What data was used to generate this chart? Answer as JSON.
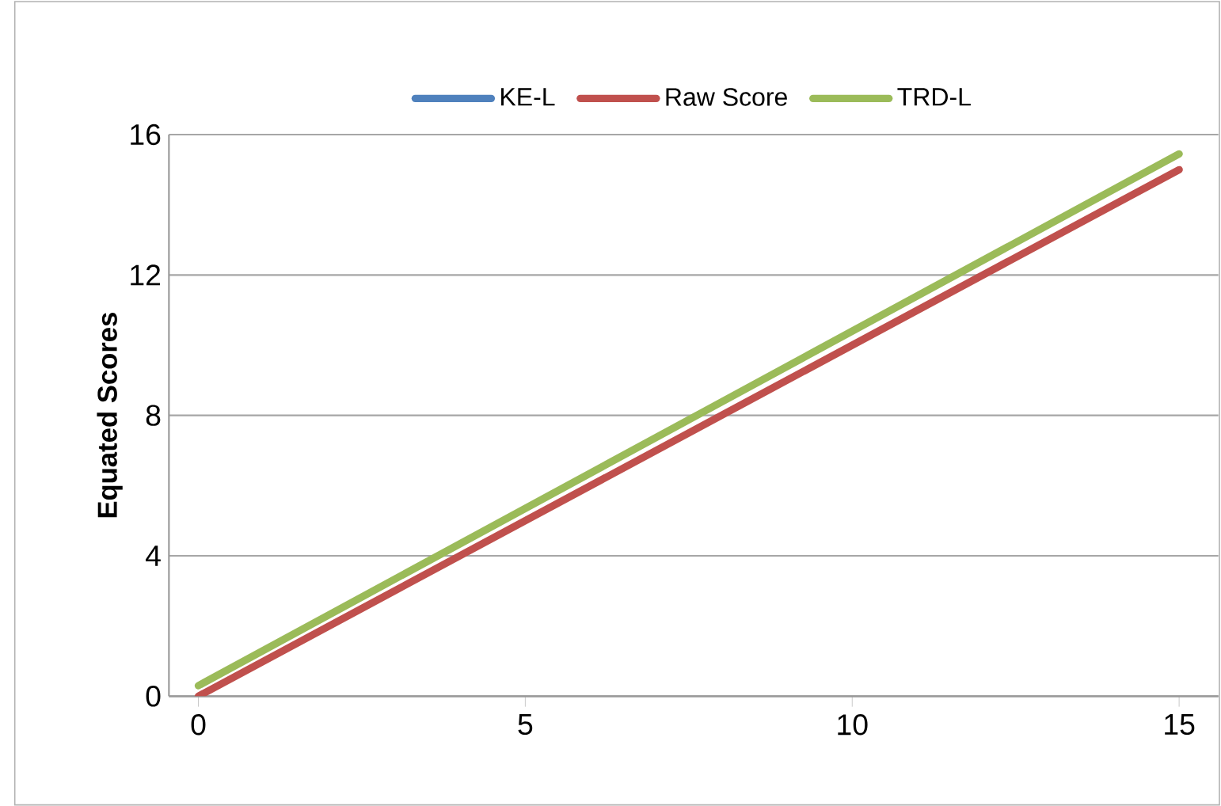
{
  "chart_data": {
    "type": "line",
    "ylabel": "Equated Scores",
    "series": [
      {
        "name": "KE-L",
        "color": "#4f81bd",
        "values": [
          null,
          null
        ]
      },
      {
        "name": "Raw Score",
        "color": "#c0504d",
        "values": [
          0,
          15
        ]
      },
      {
        "name": "TRD-L",
        "color": "#9bbb59",
        "values": [
          0.3,
          15.45
        ]
      }
    ],
    "x": [
      0,
      15
    ],
    "xlim": [
      -0.45,
      15.6
    ],
    "ylim": [
      0,
      16
    ],
    "xticks": [
      0,
      5,
      10,
      15
    ],
    "yticks": [
      0,
      4,
      8,
      12,
      16
    ],
    "grid": "y",
    "legend": "top",
    "marker": "none",
    "line_style": "solid"
  }
}
